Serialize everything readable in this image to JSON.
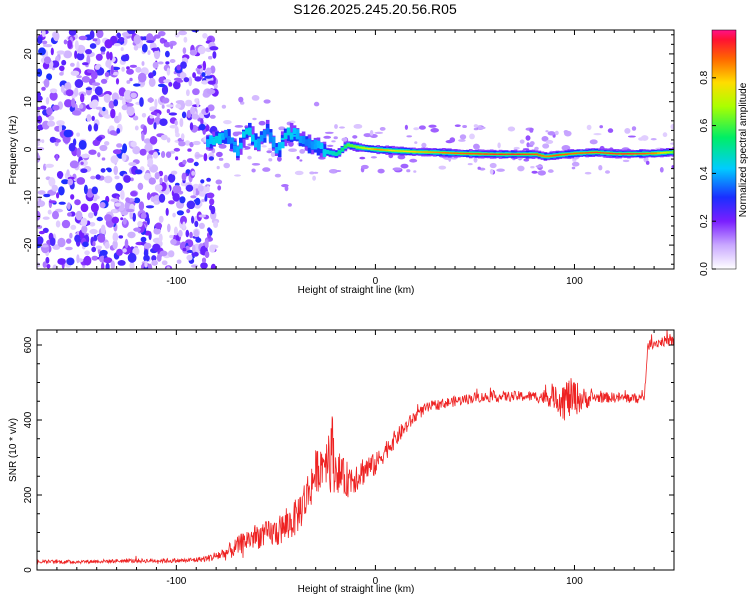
{
  "title": "S126.2025.245.20.56.R05",
  "chart_data": [
    {
      "type": "heatmap",
      "xlabel": "Height of straight line (km)",
      "ylabel": "Frequency (Hz)",
      "xlim": [
        -170,
        150
      ],
      "ylim": [
        -25,
        25
      ],
      "xticks": [
        "-100",
        "0",
        "100"
      ],
      "xtick_values": [
        -100,
        0,
        100
      ],
      "yticks": [
        "-20",
        "-10",
        "0",
        "10",
        "20"
      ],
      "ytick_values": [
        -20,
        -10,
        0,
        10,
        20
      ],
      "colorbar": {
        "label": "Normalized spectral amplitude",
        "range": [
          0,
          1
        ],
        "ticks": [
          "0.0",
          "0.2",
          "0.4",
          "0.6",
          "0.8"
        ],
        "tick_values": [
          0.0,
          0.2,
          0.4,
          0.6,
          0.8
        ]
      },
      "ridge": {
        "description_free_trace": true,
        "x": [
          -85,
          -80,
          -75,
          -70,
          -65,
          -60,
          -55,
          -50,
          -45,
          -40,
          -35,
          -30,
          -25,
          -20,
          -15,
          -10,
          -5,
          0,
          10,
          20,
          30,
          40,
          50,
          60,
          70,
          80,
          85,
          90,
          100,
          110,
          120,
          130,
          140,
          150
        ],
        "freq": [
          1.5,
          2.5,
          3.0,
          -0.5,
          4.5,
          1.0,
          4.0,
          -0.5,
          3.5,
          3.0,
          1.0,
          0.5,
          -0.5,
          -1.0,
          1.0,
          0.5,
          0.2,
          0.0,
          -0.3,
          -0.5,
          -0.6,
          -0.8,
          -0.9,
          -1.0,
          -1.0,
          -1.0,
          -1.5,
          -1.2,
          -0.8,
          -0.6,
          -0.9,
          -0.9,
          -0.8,
          -0.5
        ],
        "amplitude": [
          0.4,
          0.45,
          0.35,
          0.4,
          0.45,
          0.4,
          0.35,
          0.4,
          0.45,
          0.4,
          0.35,
          0.4,
          0.45,
          0.5,
          0.6,
          0.65,
          0.75,
          0.85,
          0.75,
          0.8,
          0.85,
          0.88,
          0.9,
          0.92,
          0.93,
          0.9,
          0.85,
          0.9,
          0.88,
          0.9,
          0.92,
          0.92,
          0.85,
          0.6
        ]
      }
    },
    {
      "type": "line",
      "xlabel": "Height of straight line (km)",
      "ylabel": "SNR (10 * v/v)",
      "xlim": [
        -170,
        150
      ],
      "ylim": [
        0,
        640
      ],
      "xticks": [
        "-100",
        "0",
        "100"
      ],
      "xtick_values": [
        -100,
        0,
        100
      ],
      "yticks": [
        "0",
        "200",
        "400",
        "600"
      ],
      "ytick_values": [
        0,
        200,
        400,
        600
      ],
      "color": "#ee2222",
      "series": [
        {
          "name": "SNR",
          "x": [
            -170,
            -150,
            -130,
            -110,
            -95,
            -85,
            -75,
            -70,
            -65,
            -60,
            -55,
            -50,
            -45,
            -40,
            -35,
            -30,
            -25,
            -22,
            -20,
            -15,
            -10,
            -5,
            0,
            5,
            10,
            15,
            20,
            25,
            30,
            35,
            40,
            50,
            60,
            70,
            80,
            90,
            95,
            100,
            105,
            110,
            120,
            130,
            135,
            137,
            140,
            145,
            150
          ],
          "y": [
            22,
            22,
            24,
            25,
            25,
            30,
            45,
            60,
            80,
            90,
            95,
            100,
            115,
            140,
            190,
            260,
            300,
            320,
            270,
            240,
            250,
            270,
            280,
            320,
            350,
            380,
            410,
            430,
            440,
            445,
            450,
            460,
            462,
            463,
            463,
            460,
            455,
            460,
            455,
            460,
            460,
            458,
            458,
            600,
            605,
            610,
            610
          ],
          "noise": [
            5,
            5,
            5,
            6,
            6,
            8,
            20,
            25,
            30,
            35,
            35,
            40,
            45,
            50,
            60,
            60,
            65,
            120,
            60,
            50,
            45,
            40,
            30,
            28,
            24,
            20,
            18,
            15,
            14,
            14,
            14,
            14,
            14,
            14,
            14,
            30,
            60,
            50,
            30,
            14,
            14,
            14,
            14,
            14,
            14,
            14,
            14
          ]
        }
      ]
    }
  ]
}
